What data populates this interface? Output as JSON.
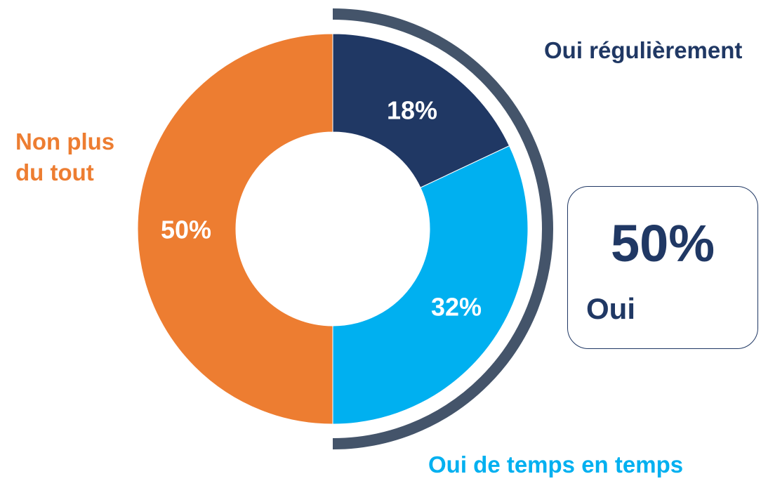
{
  "chart_data": {
    "type": "pie",
    "donut": true,
    "categories": [
      "Oui régulièrement",
      "Oui de temps en temps",
      "Non plus du tout"
    ],
    "values": [
      18,
      32,
      50
    ],
    "value_labels": [
      "18%",
      "32%",
      "50%"
    ],
    "colors": [
      "#203864",
      "#00b0f0",
      "#ed7d31"
    ],
    "summary": {
      "value": 50,
      "value_label": "50%",
      "label": "Oui",
      "color": "#44546a"
    }
  }
}
